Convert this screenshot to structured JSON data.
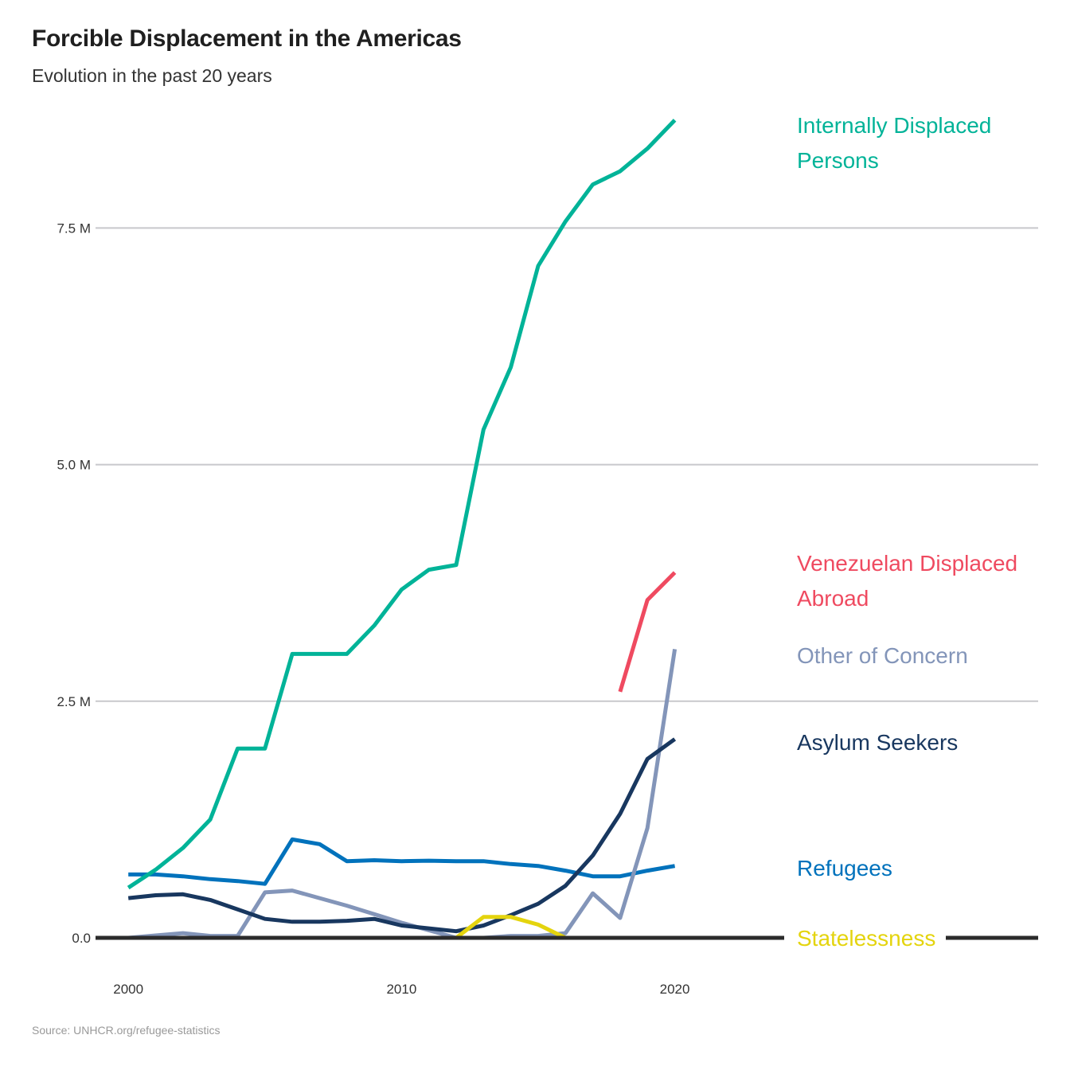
{
  "title": "Forcible Displacement in the Americas",
  "subtitle": "Evolution in the past 20 years",
  "source": "Source: UNHCR.org/refugee-statistics",
  "chart_data": {
    "type": "line",
    "x": [
      2000,
      2001,
      2002,
      2003,
      2004,
      2005,
      2006,
      2007,
      2008,
      2009,
      2010,
      2011,
      2012,
      2013,
      2014,
      2015,
      2016,
      2017,
      2018,
      2019,
      2020
    ],
    "xticks": [
      2000,
      2010,
      2020
    ],
    "xtick_labels": [
      "2000",
      "2010",
      "2020"
    ],
    "yticks": [
      0,
      2500000,
      5000000,
      7500000
    ],
    "ytick_labels": [
      "0.0",
      "2.5 M",
      "5.0 M",
      "7.5 M"
    ],
    "xlim": [
      1998.8,
      2033.3
    ],
    "ylim": [
      0,
      8900000
    ],
    "grid": "horizontal",
    "legend": "direct labels at line ends (right)",
    "series": [
      {
        "name": "Internally Displaced Persons",
        "label_lines": [
          "Internally Displaced",
          " Persons"
        ],
        "color": "#00b398",
        "values": [
          530000,
          720000,
          950000,
          1250000,
          2000000,
          2000000,
          3000000,
          3000000,
          3000000,
          3300000,
          3680000,
          3890000,
          3940000,
          5370000,
          6030000,
          7100000,
          7570000,
          7960000,
          8100000,
          8340000,
          8640000
        ]
      },
      {
        "name": "Venezuelan Displaced Abroad",
        "label_lines": [
          "Venezuelan Displaced",
          " Abroad"
        ],
        "color": "#ef4a60",
        "values": [
          null,
          null,
          null,
          null,
          null,
          null,
          null,
          null,
          null,
          null,
          null,
          null,
          null,
          null,
          null,
          null,
          null,
          null,
          2600000,
          3570000,
          3860000
        ]
      },
      {
        "name": "Other of Concern",
        "label_lines": [
          "Other of Concern"
        ],
        "color": "#8395b9",
        "values": [
          0,
          25000,
          50000,
          20000,
          20000,
          480000,
          500000,
          420000,
          340000,
          250000,
          160000,
          80000,
          0,
          0,
          20000,
          20000,
          50000,
          470000,
          210000,
          1160000,
          3050000
        ]
      },
      {
        "name": "Asylum Seekers",
        "label_lines": [
          "Asylum Seekers"
        ],
        "color": "#18375f",
        "values": [
          420000,
          450000,
          460000,
          400000,
          300000,
          200000,
          170000,
          170000,
          180000,
          200000,
          130000,
          100000,
          70000,
          130000,
          240000,
          360000,
          550000,
          870000,
          1310000,
          1890000,
          2100000
        ]
      },
      {
        "name": "Refugees",
        "label_lines": [
          "Refugees"
        ],
        "color": "#0072bc",
        "values": [
          670000,
          670000,
          650000,
          620000,
          600000,
          570000,
          1040000,
          990000,
          810000,
          820000,
          810000,
          815000,
          810000,
          810000,
          780000,
          760000,
          710000,
          650000,
          650000,
          710000,
          760000
        ]
      },
      {
        "name": "Statelessness",
        "label_lines": [
          "Statelessness"
        ],
        "color": "#e4d40e",
        "values": [
          null,
          null,
          null,
          null,
          null,
          null,
          null,
          null,
          null,
          null,
          null,
          null,
          0,
          220000,
          220000,
          140000,
          0,
          0,
          0,
          0,
          0
        ]
      }
    ]
  }
}
